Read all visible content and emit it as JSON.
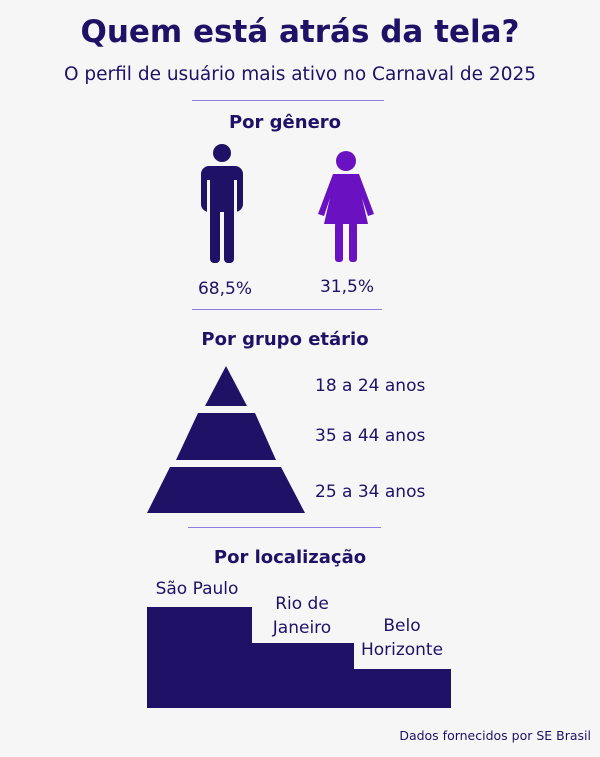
{
  "title": "Quem está atrás da tela?",
  "subtitle": "O perfil de usuário mais ativo no Carnaval de 2025",
  "source": "Dados fornecidos por SE Brasil",
  "colors": {
    "dark": "#1f1266",
    "purple": "#6a12c2",
    "rule": "#8a7fe0"
  },
  "gender": {
    "title": "Por gênero",
    "male_pct": "68,5%",
    "female_pct": "31,5%",
    "male_icon": "man-icon",
    "female_icon": "woman-icon"
  },
  "age": {
    "title": "Por grupo etário",
    "labels": [
      "18 a 24 anos",
      "35 a 44 anos",
      "25 a 34 anos"
    ]
  },
  "location": {
    "title": "Por localização",
    "labels": [
      "São Paulo",
      "Rio de\nJaneiro",
      "Belo\nHorizonte"
    ]
  },
  "chart_data": [
    {
      "type": "pictogram",
      "title": "Por gênero",
      "categories": [
        "Masculino",
        "Feminino"
      ],
      "values": [
        68.5,
        31.5
      ],
      "labels": [
        "68,5%",
        "31,5%"
      ]
    },
    {
      "type": "pyramid",
      "title": "Por grupo etário",
      "categories": [
        "18 a 24 anos",
        "35 a 44 anos",
        "25 a 34 anos"
      ],
      "order": "top-to-bottom"
    },
    {
      "type": "podium",
      "title": "Por localização",
      "categories": [
        "São Paulo",
        "Rio de Janeiro",
        "Belo Horizonte"
      ],
      "rank": [
        1,
        2,
        3
      ]
    }
  ]
}
